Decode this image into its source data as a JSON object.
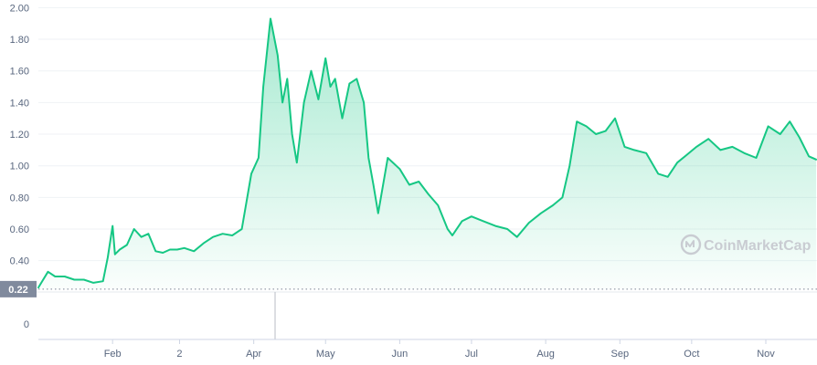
{
  "chart_data": {
    "type": "area",
    "y_ticks": [
      "0",
      "0.40",
      "0.60",
      "0.80",
      "1.00",
      "1.20",
      "1.40",
      "1.60",
      "1.80",
      "2.00"
    ],
    "ylim": [
      0.2,
      2.0
    ],
    "x_tick_labels": [
      "Feb",
      "2",
      "Apr",
      "May",
      "Jun",
      "Jul",
      "Aug",
      "Sep",
      "Oct",
      "Nov"
    ],
    "reference_line": {
      "value": 0.22,
      "label": "0.22"
    },
    "series": [
      {
        "x": [
          "2021-01-01",
          "2021-01-05",
          "2021-01-08",
          "2021-01-12",
          "2021-01-16",
          "2021-01-20",
          "2021-01-24",
          "2021-01-28",
          "2021-01-30",
          "2021-02-01",
          "2021-02-02",
          "2021-02-04",
          "2021-02-07",
          "2021-02-10",
          "2021-02-13",
          "2021-02-16",
          "2021-02-19",
          "2021-02-22",
          "2021-02-25",
          "2021-02-28",
          "2021-03-03",
          "2021-03-07",
          "2021-03-11",
          "2021-03-15",
          "2021-03-19",
          "2021-03-23",
          "2021-03-27",
          "2021-03-31",
          "2021-04-03",
          "2021-04-05",
          "2021-04-08",
          "2021-04-11",
          "2021-04-13",
          "2021-04-15",
          "2021-04-17",
          "2021-04-19",
          "2021-04-22",
          "2021-04-25",
          "2021-04-28",
          "2021-05-01",
          "2021-05-03",
          "2021-05-05",
          "2021-05-08",
          "2021-05-11",
          "2021-05-14",
          "2021-05-17",
          "2021-05-19",
          "2021-05-21",
          "2021-05-23",
          "2021-05-27",
          "2021-06-01",
          "2021-06-05",
          "2021-06-09",
          "2021-06-13",
          "2021-06-17",
          "2021-06-21",
          "2021-06-23",
          "2021-06-27",
          "2021-07-01",
          "2021-07-06",
          "2021-07-11",
          "2021-07-16",
          "2021-07-20",
          "2021-07-25",
          "2021-07-30",
          "2021-08-04",
          "2021-08-08",
          "2021-08-11",
          "2021-08-14",
          "2021-08-18",
          "2021-08-22",
          "2021-08-26",
          "2021-08-30",
          "2021-09-03",
          "2021-09-07",
          "2021-09-12",
          "2021-09-17",
          "2021-09-21",
          "2021-09-25",
          "2021-09-29",
          "2021-10-03",
          "2021-10-08",
          "2021-10-13",
          "2021-10-18",
          "2021-10-23",
          "2021-10-28",
          "2021-11-02",
          "2021-11-07",
          "2021-11-11",
          "2021-11-15",
          "2021-11-19",
          "2021-11-22"
        ],
        "values": [
          0.23,
          0.33,
          0.3,
          0.3,
          0.28,
          0.28,
          0.26,
          0.27,
          0.42,
          0.62,
          0.44,
          0.47,
          0.5,
          0.6,
          0.55,
          0.57,
          0.46,
          0.45,
          0.47,
          0.47,
          0.48,
          0.46,
          0.51,
          0.55,
          0.57,
          0.56,
          0.6,
          0.95,
          1.05,
          1.5,
          1.93,
          1.7,
          1.4,
          1.55,
          1.2,
          1.02,
          1.4,
          1.6,
          1.42,
          1.68,
          1.5,
          1.55,
          1.3,
          1.52,
          1.55,
          1.4,
          1.05,
          0.88,
          0.7,
          1.05,
          0.98,
          0.88,
          0.9,
          0.82,
          0.75,
          0.6,
          0.56,
          0.65,
          0.68,
          0.65,
          0.62,
          0.6,
          0.55,
          0.64,
          0.7,
          0.75,
          0.8,
          1.0,
          1.28,
          1.25,
          1.2,
          1.22,
          1.3,
          1.12,
          1.1,
          1.08,
          0.95,
          0.93,
          1.02,
          1.07,
          1.12,
          1.17,
          1.1,
          1.12,
          1.08,
          1.05,
          1.25,
          1.2,
          1.28,
          1.18,
          1.06,
          1.04
        ]
      }
    ],
    "colors": {
      "line": "#16c784",
      "area_top": "#16c784",
      "ref_badge": "#808a9d",
      "grid": "#eff2f5",
      "axis_text": "#58667e"
    },
    "grid": true,
    "watermark": {
      "text": "CoinMarketCap",
      "icon": "coinmarketcap-logo-icon"
    }
  }
}
